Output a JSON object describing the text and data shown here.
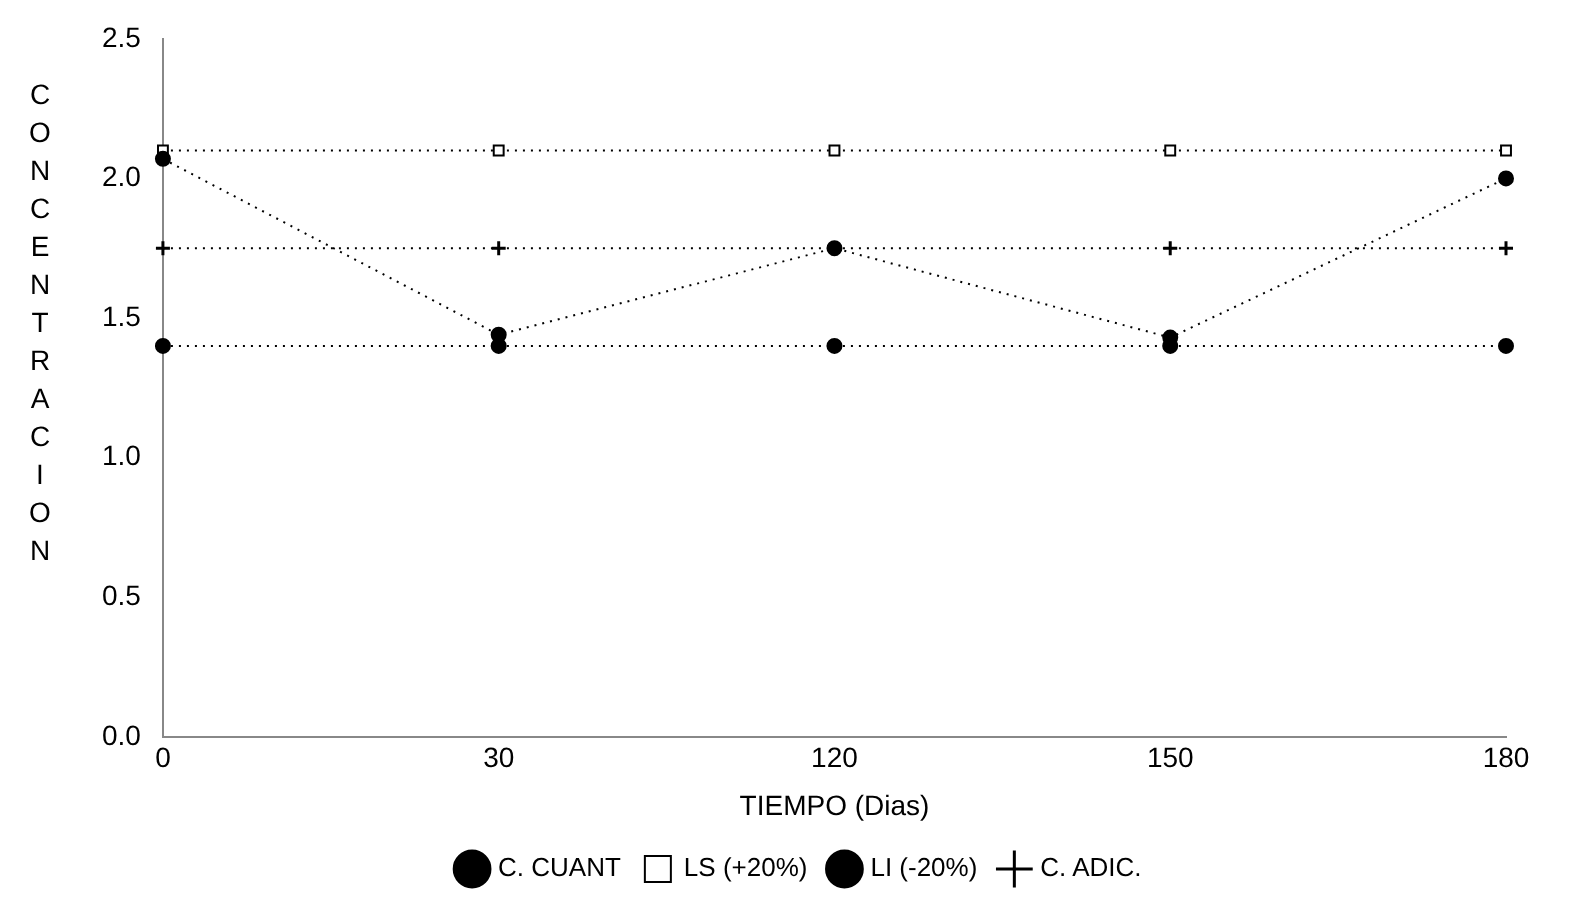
{
  "chart_data": {
    "type": "line",
    "xlabel": "TIEMPO (Dias)",
    "ylabel": "CONCENTRACION",
    "categories": [
      "0",
      "30",
      "120",
      "150",
      "180"
    ],
    "series": [
      {
        "name": "C. CUANT",
        "color": "#000000",
        "marker": "circle",
        "values": [
          2.07,
          1.44,
          1.75,
          1.43,
          2.0
        ]
      },
      {
        "name": "LS (+20%)",
        "color": "#000000",
        "marker": "square",
        "values": [
          2.1,
          2.1,
          2.1,
          2.1,
          2.1
        ]
      },
      {
        "name": "LI (-20%)",
        "color": "#000000",
        "marker": "circle",
        "values": [
          1.4,
          1.4,
          1.4,
          1.4,
          1.4
        ]
      },
      {
        "name": "C. ADIC.",
        "color": "#000000",
        "marker": "cross",
        "values": [
          1.75,
          1.75,
          1.75,
          1.75,
          1.75
        ]
      }
    ],
    "ylim": [
      0,
      2.5
    ],
    "yticks": [
      {
        "value": 0,
        "label": "0.0"
      },
      {
        "value": 0.5,
        "label": "0.5"
      },
      {
        "value": 1,
        "label": "1.0"
      },
      {
        "value": 1.5,
        "label": "1.5"
      },
      {
        "value": 2,
        "label": "2.0"
      },
      {
        "value": 2.5,
        "label": "2.5"
      }
    ],
    "grid": false,
    "legend": "bottom",
    "line_style": "dotted"
  }
}
